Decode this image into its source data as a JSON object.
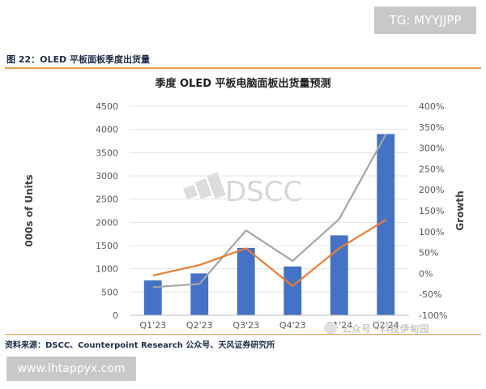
{
  "header": {
    "tg_badge": "TG: MYYJJPP",
    "figure_caption": "图 22：OLED 平板面板季度出货量"
  },
  "footer": {
    "source": "资料来源：DSCC、Counterpoint Research 公众号、天风证券研究所",
    "url_badge": "www.lhtappyx.com"
  },
  "watermarks": {
    "dscc": "DSCC",
    "wechat": "公众号 · 科技伊甸园"
  },
  "colors": {
    "bar": "#4472c4",
    "line_gray": "#a5a5a5",
    "line_orange": "#ed7d31",
    "caption_rule": "#e8a14a",
    "badge_bg": "#c8c8c8"
  },
  "chart_data": {
    "type": "bar",
    "title": "季度 OLED 平板电脑面板出货量预测",
    "ylabel": "000s of Units",
    "y2label": "Growth",
    "categories": [
      "Q1'23",
      "Q2'23",
      "Q3'23",
      "Q4'23",
      "Q1'24",
      "Q2'24"
    ],
    "bar_series": {
      "values": [
        750,
        900,
        1450,
        1050,
        1720,
        3900
      ]
    },
    "line_series": [
      {
        "color_key": "line_gray",
        "values": [
          -33,
          -25,
          103,
          30,
          130,
          332
        ]
      },
      {
        "color_key": "line_orange",
        "values": [
          -5,
          20,
          60,
          -30,
          60,
          128
        ]
      }
    ],
    "ylim": [
      0,
      4500
    ],
    "y_ticks": [
      0,
      500,
      1000,
      1500,
      2000,
      2500,
      3000,
      3500,
      4000,
      4500
    ],
    "y2lim": [
      -100,
      400
    ],
    "y2_ticks": [
      "-100%",
      "-50%",
      "0%",
      "50%",
      "100%",
      "150%",
      "200%",
      "250%",
      "300%",
      "350%",
      "400%"
    ],
    "grid": true
  }
}
